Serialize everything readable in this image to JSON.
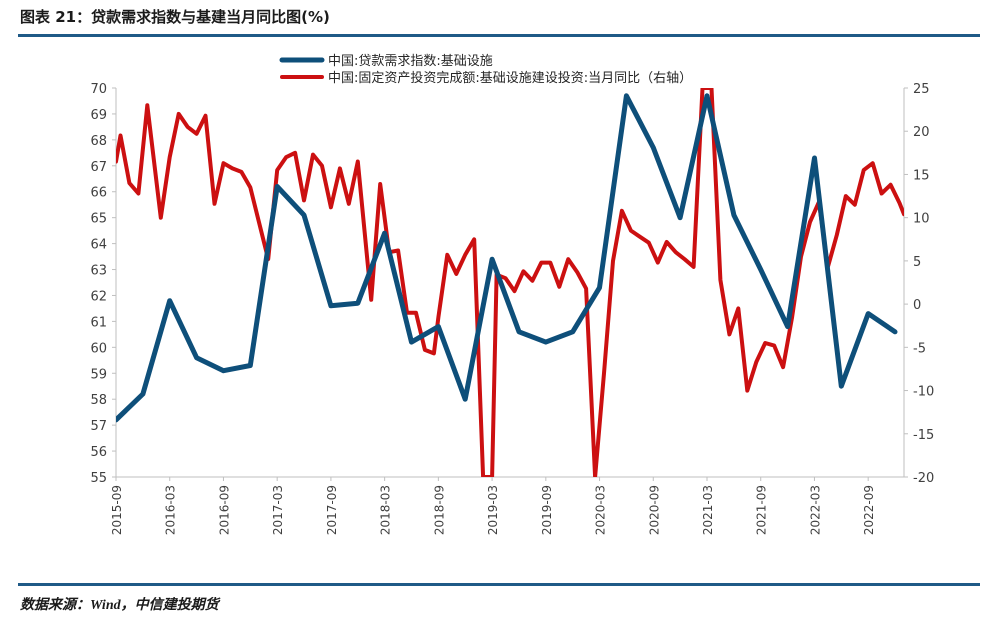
{
  "figure": {
    "title": "图表 21：贷款需求指数与基建当月同比图(%)",
    "source_prefix": "数据来源：",
    "source_wind": "Wind",
    "source_suffix": "，中信建投期货"
  },
  "colors": {
    "rule": "#1f5a87",
    "series1": "#0e4f7a",
    "series2": "#cc1011",
    "axis": "#bfbfbf",
    "text": "#404040"
  },
  "chart_data": {
    "type": "line",
    "xlabel": "",
    "ylabel": "",
    "x_tick_labels": [
      "2015-09",
      "2016-03",
      "2016-09",
      "2017-03",
      "2017-09",
      "2018-03",
      "2018-09",
      "2019-03",
      "2019-09",
      "2020-03",
      "2020-09",
      "2021-03",
      "2021-09",
      "2022-03",
      "2022-09"
    ],
    "x_range_months": [
      0,
      88
    ],
    "y_left": {
      "min": 55,
      "max": 70,
      "step": 1
    },
    "y_right": {
      "min": -20,
      "max": 25,
      "step": 5
    },
    "legend_position": "top-center",
    "series": [
      {
        "name": "中国:贷款需求指数:基础设施",
        "axis": "left",
        "points": [
          [
            0,
            57.2
          ],
          [
            3,
            58.2
          ],
          [
            6,
            61.8
          ],
          [
            9,
            59.6
          ],
          [
            12,
            59.1
          ],
          [
            15,
            59.3
          ],
          [
            18,
            66.2
          ],
          [
            21,
            65.1
          ],
          [
            24,
            61.6
          ],
          [
            27,
            61.7
          ],
          [
            30,
            64.4
          ],
          [
            33,
            60.2
          ],
          [
            36,
            60.8
          ],
          [
            39,
            58.0
          ],
          [
            42,
            63.4
          ],
          [
            45,
            60.6
          ],
          [
            48,
            60.2
          ],
          [
            51,
            60.6
          ],
          [
            54,
            62.3
          ],
          [
            57,
            69.7
          ],
          [
            60,
            67.7
          ],
          [
            63,
            65.0
          ],
          [
            66,
            69.7
          ],
          [
            69,
            65.1
          ],
          [
            72,
            63.0
          ],
          [
            75,
            60.8
          ],
          [
            78,
            67.3
          ],
          [
            81,
            58.5
          ],
          [
            84,
            61.3
          ],
          [
            87,
            60.6
          ]
        ]
      },
      {
        "name": "中国:固定资产投资完成额:基础设施建设投资:当月同比（右轴）",
        "axis": "right",
        "points": [
          [
            0,
            16.5
          ],
          [
            0.5,
            19.5
          ],
          [
            1.5,
            14.0
          ],
          [
            2.5,
            12.8
          ],
          [
            3.5,
            23.0
          ],
          [
            5,
            10.0
          ],
          [
            6,
            17.0
          ],
          [
            7,
            22.0
          ],
          [
            8,
            20.5
          ],
          [
            9,
            19.7
          ],
          [
            10,
            21.8
          ],
          [
            11,
            11.6
          ],
          [
            12,
            16.3
          ],
          [
            13,
            15.7
          ],
          [
            14,
            15.3
          ],
          [
            15,
            13.5
          ],
          [
            17,
            5.2
          ],
          [
            18,
            15.5
          ],
          [
            19,
            17.0
          ],
          [
            20,
            17.5
          ],
          [
            21,
            12.0
          ],
          [
            22,
            17.3
          ],
          [
            23,
            16.0
          ],
          [
            24,
            11.2
          ],
          [
            25,
            15.7
          ],
          [
            26,
            11.6
          ],
          [
            27,
            16.5
          ],
          [
            28.5,
            0.5
          ],
          [
            29.5,
            13.9
          ],
          [
            30.5,
            6.0
          ],
          [
            31.5,
            6.2
          ],
          [
            32.5,
            -1.0
          ],
          [
            33.5,
            -1.0
          ],
          [
            34.5,
            -5.3
          ],
          [
            35.5,
            -5.7
          ],
          [
            36,
            -1.5
          ],
          [
            37,
            5.7
          ],
          [
            38,
            3.5
          ],
          [
            39,
            5.7
          ],
          [
            40,
            7.5
          ],
          [
            41,
            -20.0
          ],
          [
            42,
            -20.0
          ],
          [
            42.5,
            3.4
          ],
          [
            43.5,
            3.0
          ],
          [
            44.5,
            1.5
          ],
          [
            45.5,
            3.8
          ],
          [
            46.5,
            2.7
          ],
          [
            47.5,
            4.8
          ],
          [
            48.5,
            4.8
          ],
          [
            49.5,
            2.0
          ],
          [
            50.5,
            5.2
          ],
          [
            51.5,
            3.7
          ],
          [
            52.5,
            1.8
          ],
          [
            53.5,
            -20.0
          ],
          [
            54.5,
            -8.0
          ],
          [
            55.5,
            5.0
          ],
          [
            56.5,
            10.8
          ],
          [
            57.5,
            8.5
          ],
          [
            58.5,
            7.8
          ],
          [
            59.5,
            7.1
          ],
          [
            60.5,
            4.8
          ],
          [
            61.5,
            7.2
          ],
          [
            62.5,
            6.0
          ],
          [
            63.5,
            5.2
          ],
          [
            64.5,
            4.3
          ],
          [
            65.5,
            25.0
          ],
          [
            66.5,
            25.0
          ],
          [
            67.5,
            2.8
          ],
          [
            68.5,
            -3.5
          ],
          [
            69.5,
            -0.5
          ],
          [
            70.5,
            -10.0
          ],
          [
            71.5,
            -6.7
          ],
          [
            72.5,
            -4.5
          ],
          [
            73.5,
            -4.8
          ],
          [
            74.5,
            -7.3
          ],
          [
            75.5,
            -1.5
          ],
          [
            76.5,
            5.5
          ],
          [
            77.5,
            9.5
          ],
          [
            78.5,
            11.8
          ],
          [
            79.5,
            4.3
          ],
          [
            80.5,
            8.0
          ],
          [
            81.5,
            12.5
          ],
          [
            82.5,
            11.5
          ],
          [
            83.5,
            15.5
          ],
          [
            84.5,
            16.3
          ],
          [
            85.5,
            12.8
          ],
          [
            86.5,
            13.8
          ],
          [
            87.5,
            11.7
          ],
          [
            88,
            10.4
          ]
        ]
      }
    ]
  }
}
